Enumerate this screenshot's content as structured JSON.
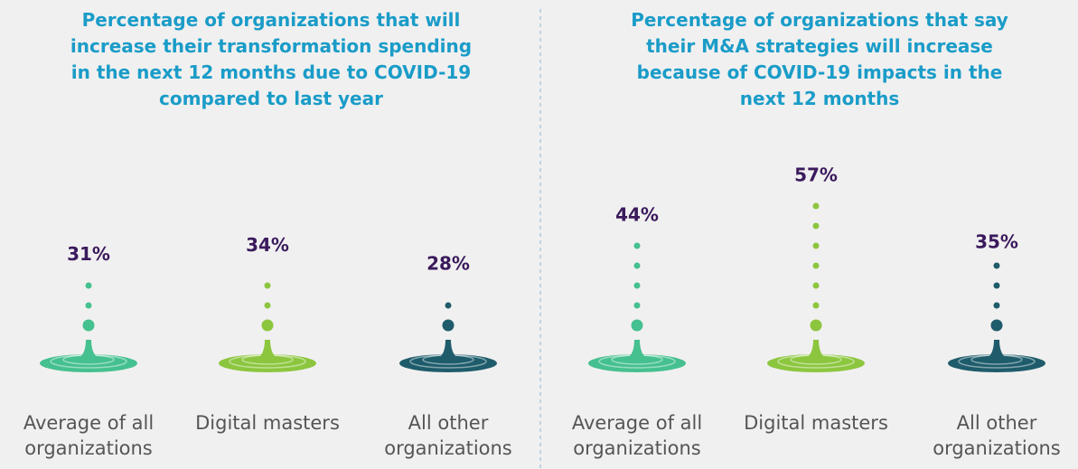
{
  "chart_data": [
    {
      "type": "droplet",
      "title": "Percentage of organizations that will increase their transformation spending in the next 12 months due to COVID-19 compared to last year",
      "categories": [
        "Average of all organizations",
        "Digital masters",
        "All other organizations"
      ],
      "values": [
        31,
        34,
        28
      ],
      "value_labels": [
        "31%",
        "34%",
        "28%"
      ],
      "colors": [
        "#45c08f",
        "#8cc63f",
        "#1e5c6b"
      ]
    },
    {
      "type": "droplet",
      "title": "Percentage of organizations that say their M&A strategies will increase because of COVID-19 impacts in the next 12 months",
      "categories": [
        "Average of all organizations",
        "Digital masters",
        "All other organizations"
      ],
      "values": [
        44,
        57,
        35
      ],
      "value_labels": [
        "44%",
        "57%",
        "35%"
      ],
      "colors": [
        "#45c08f",
        "#8cc63f",
        "#1e5c6b"
      ]
    }
  ]
}
